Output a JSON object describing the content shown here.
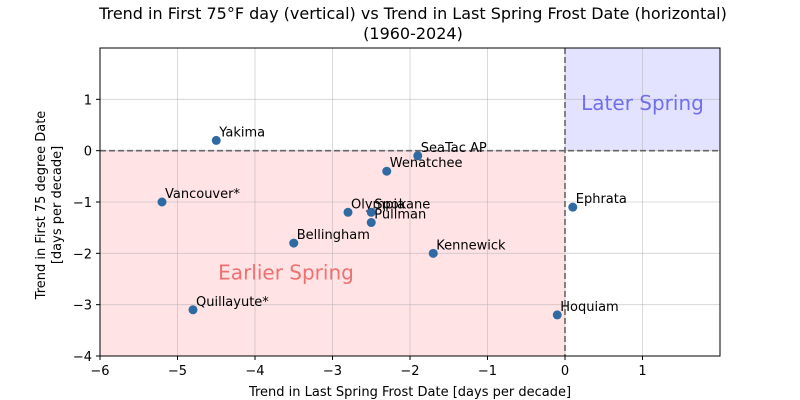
{
  "chart_data": {
    "type": "scatter",
    "title": "Trend in First 75°F day (vertical) vs Trend in Last Spring Frost Date (horizontal)",
    "subtitle": "(1960-2024)",
    "xlabel": "Trend in Last Spring Frost Date [days per decade]",
    "ylabel_line1": "Trend in First 75 degree Date",
    "ylabel_line2": "[days per decade]",
    "xlim": [
      -6,
      2
    ],
    "ylim": [
      -4,
      2
    ],
    "xticks": [
      -6,
      -5,
      -4,
      -3,
      -2,
      -1,
      0,
      1
    ],
    "yticks": [
      -4,
      -3,
      -2,
      -1,
      0,
      1
    ],
    "xtick_labels": [
      "−6",
      "−5",
      "−4",
      "−3",
      "−2",
      "−1",
      "0",
      "1"
    ],
    "ytick_labels": [
      "−4",
      "−3",
      "−2",
      "−1",
      "0",
      "1"
    ],
    "grid": true,
    "marker_color": "#2f6aa3",
    "reference_lines": {
      "x": 0,
      "y": 0,
      "style": "dashed",
      "color": "#666666"
    },
    "regions": [
      {
        "name": "Earlier Spring",
        "x": [
          -6,
          0
        ],
        "y": [
          -4,
          0
        ],
        "fill": "#ffe3e5",
        "text_color": "#f07070",
        "label_pos": [
          -3.6,
          -2.4
        ]
      },
      {
        "name": "Later Spring",
        "x": [
          0,
          2
        ],
        "y": [
          0,
          2
        ],
        "fill": "#e3e3ff",
        "text_color": "#7070ee",
        "label_pos": [
          1.0,
          0.9
        ]
      }
    ],
    "points": [
      {
        "label": "Yakima",
        "x": -4.5,
        "y": 0.2
      },
      {
        "label": "SeaTac AP",
        "x": -1.9,
        "y": -0.1
      },
      {
        "label": "Wenatchee",
        "x": -2.3,
        "y": -0.4
      },
      {
        "label": "Vancouver*",
        "x": -5.2,
        "y": -1.0
      },
      {
        "label": "Olympia",
        "x": -2.8,
        "y": -1.2
      },
      {
        "label": "Spokane",
        "x": -2.5,
        "y": -1.2
      },
      {
        "label": "Pullman",
        "x": -2.5,
        "y": -1.4
      },
      {
        "label": "Ephrata",
        "x": 0.1,
        "y": -1.1
      },
      {
        "label": "Bellingham",
        "x": -3.5,
        "y": -1.8
      },
      {
        "label": "Kennewick",
        "x": -1.7,
        "y": -2.0
      },
      {
        "label": "Quillayute*",
        "x": -4.8,
        "y": -3.1
      },
      {
        "label": "Hoquiam",
        "x": -0.1,
        "y": -3.2
      }
    ]
  }
}
